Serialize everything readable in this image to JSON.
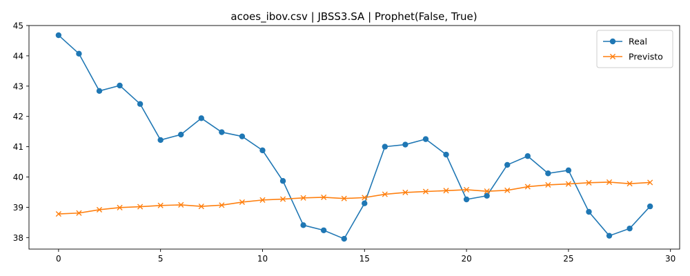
{
  "chart_data": {
    "type": "line",
    "title": "acoes_ibov.csv | JBSS3.SA | Prophet(False, True)",
    "xlabel": "",
    "ylabel": "",
    "xlim": [
      -1.45,
      30.45
    ],
    "ylim": [
      37.62,
      45.0
    ],
    "xticks": [
      0,
      5,
      10,
      15,
      20,
      25,
      30
    ],
    "yticks": [
      38,
      39,
      40,
      41,
      42,
      43,
      44,
      45
    ],
    "grid": false,
    "legend": "top-right",
    "x": [
      0,
      1,
      2,
      3,
      4,
      5,
      6,
      7,
      8,
      9,
      10,
      11,
      12,
      13,
      14,
      15,
      16,
      17,
      18,
      19,
      20,
      21,
      22,
      23,
      24,
      25,
      26,
      27,
      28,
      29
    ],
    "series": [
      {
        "name": "Real",
        "color": "#1f77b4",
        "marker": "circle",
        "values": [
          44.68,
          44.07,
          42.84,
          43.02,
          42.41,
          41.22,
          41.4,
          41.94,
          41.48,
          41.34,
          40.88,
          39.87,
          38.41,
          38.24,
          37.96,
          39.13,
          41.0,
          41.07,
          41.25,
          40.74,
          39.26,
          39.38,
          40.4,
          40.69,
          40.12,
          40.22,
          38.85,
          38.06,
          38.3,
          39.03
        ]
      },
      {
        "name": "Previsto",
        "color": "#ff7f0e",
        "marker": "x",
        "values": [
          38.78,
          38.81,
          38.92,
          38.99,
          39.02,
          39.06,
          39.08,
          39.03,
          39.07,
          39.17,
          39.24,
          39.27,
          39.31,
          39.33,
          39.29,
          39.32,
          39.43,
          39.49,
          39.52,
          39.55,
          39.58,
          39.53,
          39.56,
          39.68,
          39.74,
          39.77,
          39.81,
          39.83,
          39.78,
          39.82
        ]
      }
    ]
  }
}
